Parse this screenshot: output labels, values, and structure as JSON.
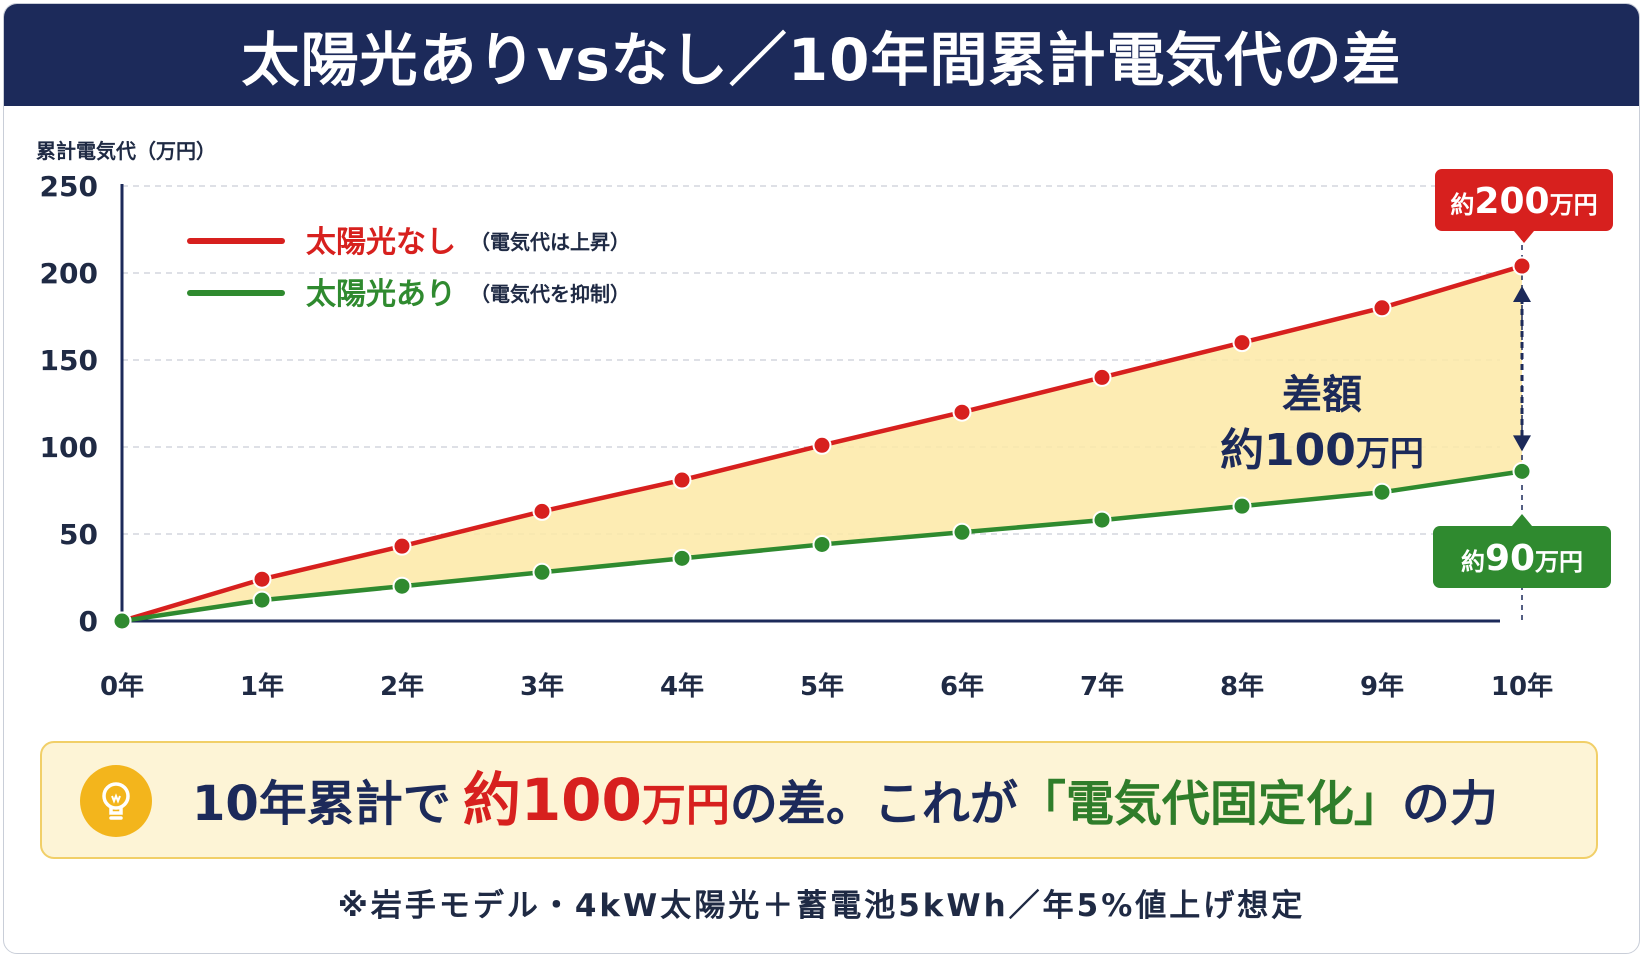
{
  "header": {
    "title": "太陽光ありvsなし／10年間累計電気代の差"
  },
  "chart_data": {
    "type": "line",
    "ylabel": "累計電気代（万円）",
    "ylim": [
      0,
      250
    ],
    "yticks": [
      0,
      50,
      100,
      150,
      200,
      250
    ],
    "grid": true,
    "categories": [
      "0年",
      "1年",
      "2年",
      "3年",
      "4年",
      "5年",
      "6年",
      "7年",
      "8年",
      "9年",
      "10年"
    ],
    "series": [
      {
        "name": "太陽光なし",
        "note": "（電気代は上昇）",
        "color": "#d7201e",
        "values": [
          0,
          24,
          43,
          63,
          81,
          101,
          120,
          140,
          160,
          180,
          204
        ]
      },
      {
        "name": "太陽光あり",
        "note": "（電気代を抑制）",
        "color": "#2f8a2f",
        "values": [
          0,
          12,
          20,
          28,
          36,
          44,
          51,
          58,
          66,
          74,
          86
        ]
      }
    ],
    "fill_between_color": "#fde9a6",
    "legend_position": "top-left",
    "annotations": {
      "diff_line1": "差額",
      "diff_line2_num": "約100",
      "diff_line2_unit": "万円",
      "label_high": {
        "prefix": "約",
        "num": "200",
        "unit": "万円"
      },
      "label_low": {
        "prefix": "約",
        "num": "90",
        "unit": "万円"
      }
    }
  },
  "summary": {
    "part1": "10年累計で",
    "part2_num": "約100",
    "part2_unit": "万円",
    "part3": "の差。これが",
    "part4": "「電気代固定化」",
    "part5": "の力"
  },
  "footnote": "※岩手モデル・4kW太陽光＋蓄電池5kWh／年5%値上げ想定"
}
